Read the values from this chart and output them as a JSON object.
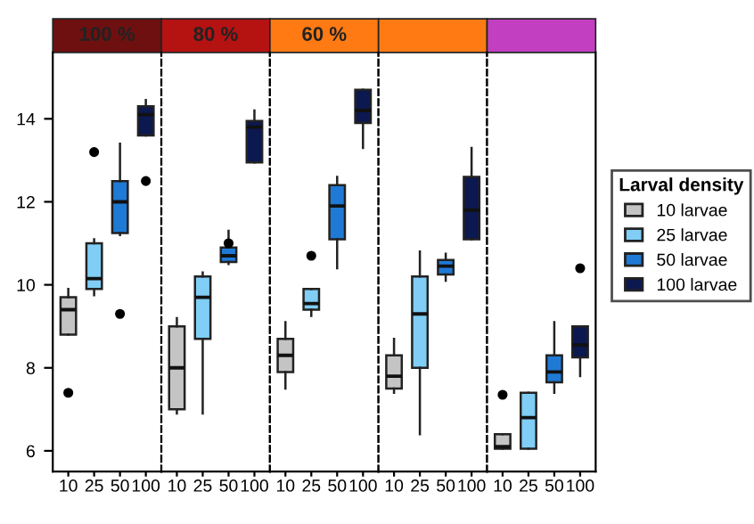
{
  "chart_data": [
    {
      "type": "box",
      "title": "100 %",
      "categories": [
        "10",
        "25",
        "50",
        "100"
      ],
      "ylim": [
        5.5,
        15.6
      ],
      "yticks": [
        6,
        8,
        10,
        12,
        14
      ],
      "grid": false,
      "series": [
        {
          "color": "#c4c4c4",
          "boxes": [
            {
              "low": 8.8,
              "q1": 8.8,
              "median": 9.4,
              "q3": 9.7,
              "high": 9.9,
              "outliers": [
                7.4
              ]
            },
            null,
            null,
            null
          ]
        },
        {
          "color": "#80cdf5",
          "boxes": [
            null,
            {
              "low": 9.75,
              "q1": 9.9,
              "median": 10.15,
              "q3": 11.0,
              "high": 11.1,
              "outliers": [
                13.2
              ]
            },
            null,
            null
          ]
        },
        {
          "color": "#1f7ad6",
          "boxes": [
            null,
            null,
            {
              "low": 11.2,
              "q1": 11.25,
              "median": 12.0,
              "q3": 12.5,
              "high": 13.4,
              "outliers": [
                9.3
              ]
            },
            null
          ]
        },
        {
          "color": "#0c1850",
          "boxes": [
            null,
            null,
            null,
            {
              "low": 13.6,
              "q1": 13.6,
              "median": 14.1,
              "q3": 14.3,
              "high": 14.45,
              "outliers": [
                12.5
              ]
            }
          ]
        }
      ]
    },
    {
      "type": "box",
      "title": "80 %",
      "categories": [
        "10",
        "25",
        "50",
        "100"
      ],
      "ylim": [
        5.5,
        15.6
      ],
      "yticks": [
        6,
        8,
        10,
        12,
        14
      ],
      "tick_labels": "x",
      "grid": false,
      "series": [
        {
          "color": "#c4c4c4",
          "boxes": [
            {
              "low": 6.9,
              "q1": 7.0,
              "median": 8.0,
              "q3": 9.0,
              "high": 9.2
            },
            null,
            null,
            null
          ]
        },
        {
          "color": "#80cdf5",
          "boxes": [
            null,
            {
              "low": 6.9,
              "q1": 8.7,
              "median": 9.7,
              "q3": 10.2,
              "high": 10.3
            },
            null,
            null
          ]
        },
        {
          "color": "#1f7ad6",
          "boxes": [
            null,
            null,
            {
              "low": 10.5,
              "q1": 10.55,
              "median": 10.7,
              "q3": 10.9,
              "high": 11.3,
              "outliers": [
                11.0
              ]
            },
            null
          ]
        },
        {
          "color": "#0c1850",
          "boxes": [
            null,
            null,
            null,
            {
              "low": 12.95,
              "q1": 12.95,
              "median": 13.8,
              "q3": 13.95,
              "high": 14.2
            }
          ]
        }
      ]
    },
    {
      "type": "box",
      "title": "60 %",
      "categories": [
        "10",
        "25",
        "50",
        "100"
      ],
      "ylim": [
        5.5,
        15.6
      ],
      "yticks": [
        6,
        8,
        10,
        12,
        14
      ],
      "tick_labels": "x",
      "grid": false,
      "series": [
        {
          "color": "#c4c4c4",
          "boxes": [
            {
              "low": 7.5,
              "q1": 7.9,
              "median": 8.3,
              "q3": 8.7,
              "high": 9.1
            },
            null,
            null,
            null
          ]
        },
        {
          "color": "#80cdf5",
          "boxes": [
            null,
            {
              "low": 9.25,
              "q1": 9.4,
              "median": 9.55,
              "q3": 9.9,
              "high": 9.9,
              "outliers": [
                10.7
              ]
            },
            null,
            null
          ]
        },
        {
          "color": "#1f7ad6",
          "boxes": [
            null,
            null,
            {
              "low": 10.4,
              "q1": 11.1,
              "median": 11.9,
              "q3": 12.4,
              "high": 12.6
            },
            null
          ]
        },
        {
          "color": "#0c1850",
          "boxes": [
            null,
            null,
            null,
            {
              "low": 13.3,
              "q1": 13.9,
              "median": 14.2,
              "q3": 14.7,
              "high": 14.7
            }
          ]
        }
      ]
    },
    {
      "type": "box",
      "categories": [
        "10",
        "25",
        "50",
        "100"
      ],
      "ylim": [
        5.5,
        15.6
      ],
      "yticks": [
        6,
        8,
        10,
        12,
        14
      ],
      "tick_labels": "x",
      "grid": false,
      "series": [
        {
          "color": "#c4c4c4",
          "boxes": [
            {
              "low": 7.4,
              "q1": 7.5,
              "median": 7.8,
              "q3": 8.3,
              "high": 8.7
            },
            null,
            null,
            null
          ]
        },
        {
          "color": "#80cdf5",
          "boxes": [
            null,
            {
              "low": 6.4,
              "q1": 8.0,
              "median": 9.3,
              "q3": 10.2,
              "high": 10.8
            },
            null,
            null
          ]
        },
        {
          "color": "#1f7ad6",
          "boxes": [
            null,
            null,
            {
              "low": 10.1,
              "q1": 10.25,
              "median": 10.45,
              "q3": 10.6,
              "high": 10.75
            },
            null
          ]
        },
        {
          "color": "#0c1850",
          "boxes": [
            null,
            null,
            null,
            {
              "low": 11.1,
              "q1": 11.1,
              "median": 11.8,
              "q3": 12.6,
              "high": 13.3
            }
          ]
        }
      ]
    },
    {
      "type": "box",
      "categories": [
        "10",
        "25",
        "50",
        "100"
      ],
      "ylim": [
        5.5,
        15.6
      ],
      "yticks": [
        6,
        8,
        10,
        12,
        14
      ],
      "tick_labels": "x",
      "grid": false,
      "legend": "right",
      "legend_title": "Larval density",
      "series": [
        {
          "name": "10 larvae",
          "color": "#c4c4c4",
          "boxes": [
            {
              "low": 6.05,
              "q1": 6.05,
              "median": 6.1,
              "q3": 6.4,
              "high": 6.4,
              "outliers": [
                7.35
              ]
            },
            null,
            null,
            null
          ]
        },
        {
          "name": "25 larvae",
          "color": "#80cdf5",
          "boxes": [
            null,
            {
              "low": 6.05,
              "q1": 6.05,
              "median": 6.8,
              "q3": 7.4,
              "high": 7.4
            },
            null,
            null
          ]
        },
        {
          "name": "50 larvae",
          "color": "#1f7ad6",
          "boxes": [
            null,
            null,
            {
              "low": 7.4,
              "q1": 7.65,
              "median": 7.9,
              "q3": 8.3,
              "high": 9.1
            },
            null
          ]
        },
        {
          "name": "100 larvae",
          "color": "#0c1850",
          "boxes": [
            null,
            null,
            null,
            {
              "low": 7.8,
              "q1": 8.25,
              "median": 8.55,
              "q3": 9.0,
              "high": 9.0,
              "outliers": [
                10.4
              ]
            }
          ]
        }
      ]
    }
  ]
}
